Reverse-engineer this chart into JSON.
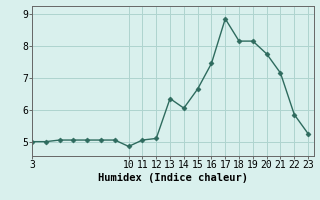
{
  "x": [
    3,
    4,
    5,
    6,
    7,
    8,
    9,
    10,
    11,
    12,
    13,
    14,
    15,
    16,
    17,
    18,
    19,
    20,
    21,
    22,
    23
  ],
  "y": [
    5.0,
    5.0,
    5.05,
    5.05,
    5.05,
    5.05,
    5.05,
    4.85,
    5.05,
    5.1,
    6.35,
    6.05,
    6.65,
    7.45,
    8.85,
    8.15,
    8.15,
    7.75,
    7.15,
    5.85,
    5.25
  ],
  "line_color": "#2e6b5e",
  "marker": "D",
  "marker_size": 2.5,
  "bg_color": "#d9f0ed",
  "grid_color": "#aed4cf",
  "xlabel": "Humidex (Indice chaleur)",
  "xlim": [
    3,
    23.4
  ],
  "ylim": [
    4.55,
    9.25
  ],
  "xticks": [
    3,
    10,
    11,
    12,
    13,
    14,
    15,
    16,
    17,
    18,
    19,
    20,
    21,
    22,
    23
  ],
  "yticks": [
    5,
    6,
    7,
    8,
    9
  ],
  "xlabel_fontsize": 7.5,
  "tick_fontsize": 7.0,
  "line_width": 1.0
}
